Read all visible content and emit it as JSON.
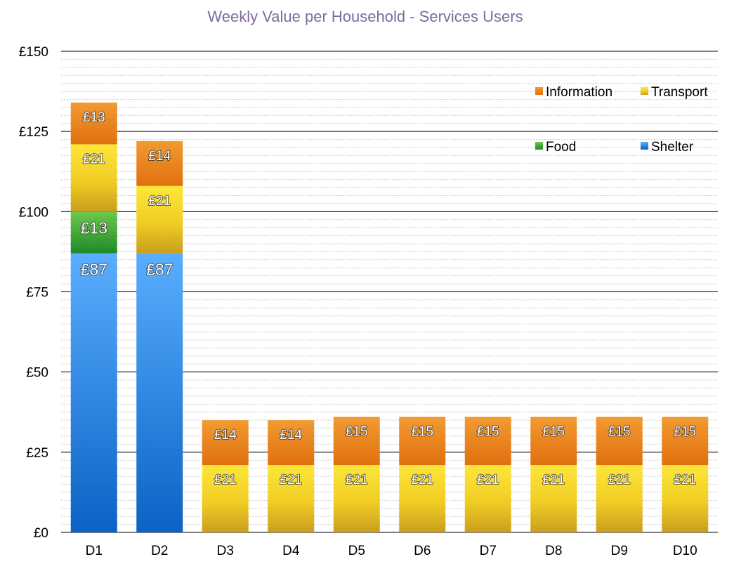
{
  "chart_data": {
    "type": "bar",
    "stacked": true,
    "title": "Weekly Value per Household - Services Users",
    "xlabel": "",
    "ylabel": "",
    "ylim": [
      0,
      150
    ],
    "y_ticks": [
      0,
      25,
      50,
      75,
      100,
      125,
      150
    ],
    "y_tick_labels": [
      "£0",
      "£25",
      "£50",
      "£75",
      "£100",
      "£125",
      "£150"
    ],
    "minor_gridlines": true,
    "legend_position": "top-right",
    "categories": [
      "D1",
      "D2",
      "D3",
      "D4",
      "D5",
      "D6",
      "D7",
      "D8",
      "D9",
      "D10"
    ],
    "series": [
      {
        "name": "Shelter",
        "color": "#2f8fe8",
        "values": [
          87,
          87,
          0,
          0,
          0,
          0,
          0,
          0,
          0,
          0
        ],
        "labels": [
          "£87",
          "£87",
          "",
          "",
          "",
          "",
          "",
          "",
          "",
          ""
        ]
      },
      {
        "name": "Food",
        "color": "#3fa535",
        "values": [
          13,
          0,
          0,
          0,
          0,
          0,
          0,
          0,
          0,
          0
        ],
        "labels": [
          "£13",
          "",
          "",
          "",
          "",
          "",
          "",
          "",
          "",
          ""
        ]
      },
      {
        "name": "Transport",
        "color": "#f3cf1c",
        "values": [
          21,
          21,
          21,
          21,
          21,
          21,
          21,
          21,
          21,
          21
        ],
        "labels": [
          "£21",
          "£21",
          "£21",
          "£21",
          "£21",
          "£21",
          "£21",
          "£21",
          "£21",
          "£21"
        ]
      },
      {
        "name": "Information",
        "color": "#ea8520",
        "values": [
          13,
          14,
          14,
          14,
          15,
          15,
          15,
          15,
          15,
          15
        ],
        "labels": [
          "£13",
          "£14",
          "£14",
          "£14",
          "£15",
          "£15",
          "£15",
          "£15",
          "£15",
          "£15"
        ]
      }
    ],
    "legend_order": [
      "Information",
      "Transport",
      "Food",
      "Shelter"
    ]
  }
}
